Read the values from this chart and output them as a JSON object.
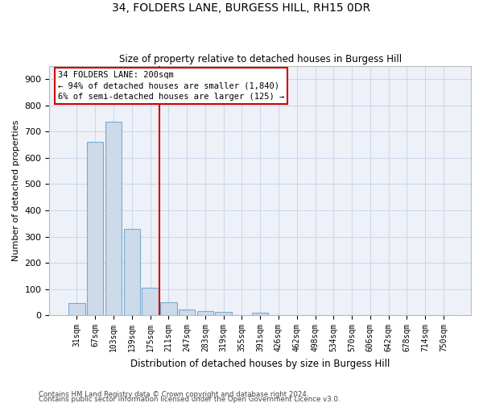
{
  "title1": "34, FOLDERS LANE, BURGESS HILL, RH15 0DR",
  "title2": "Size of property relative to detached houses in Burgess Hill",
  "xlabel": "Distribution of detached houses by size in Burgess Hill",
  "ylabel": "Number of detached properties",
  "bin_labels": [
    "31sqm",
    "67sqm",
    "103sqm",
    "139sqm",
    "175sqm",
    "211sqm",
    "247sqm",
    "283sqm",
    "319sqm",
    "355sqm",
    "391sqm",
    "426sqm",
    "462sqm",
    "498sqm",
    "534sqm",
    "570sqm",
    "606sqm",
    "642sqm",
    "678sqm",
    "714sqm",
    "750sqm"
  ],
  "bar_heights": [
    48,
    660,
    738,
    328,
    105,
    50,
    22,
    17,
    12,
    0,
    10,
    0,
    0,
    0,
    0,
    0,
    0,
    0,
    0,
    0,
    0
  ],
  "bar_color": "#ccdaea",
  "bar_edge_color": "#7aaace",
  "vline_x": 5,
  "vline_color": "#cc0000",
  "annotation_text1": "34 FOLDERS LANE: 200sqm",
  "annotation_text2": "← 94% of detached houses are smaller (1,840)",
  "annotation_text3": "6% of semi-detached houses are larger (125) →",
  "annotation_box_color": "#cc0000",
  "ylim": [
    0,
    950
  ],
  "yticks": [
    0,
    100,
    200,
    300,
    400,
    500,
    600,
    700,
    800,
    900
  ],
  "grid_color": "#ccd8ea",
  "footnote1": "Contains HM Land Registry data © Crown copyright and database right 2024.",
  "footnote2": "Contains public sector information licensed under the Open Government Licence v3.0.",
  "bg_color": "#eef2f8"
}
